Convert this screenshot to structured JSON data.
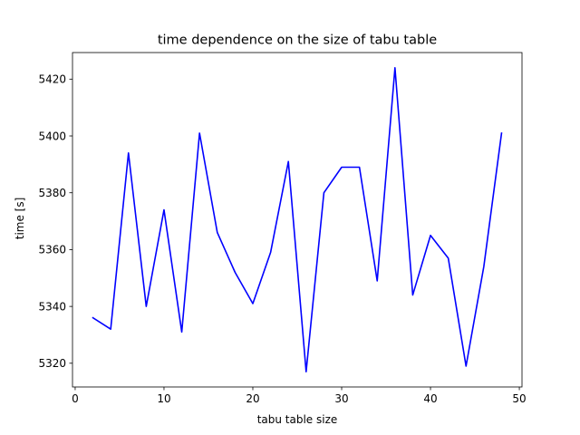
{
  "chart_data": {
    "type": "line",
    "title": "time dependence on the size of tabu table",
    "xlabel": "tabu table size",
    "ylabel": "time [s]",
    "xlim": [
      -0.3,
      50.3
    ],
    "ylim": [
      5311.65,
      5429.35
    ],
    "xticks": [
      0,
      10,
      20,
      30,
      40,
      50
    ],
    "yticks": [
      5320,
      5340,
      5360,
      5380,
      5400,
      5420
    ],
    "grid": false,
    "series": [
      {
        "color": "#0000ff",
        "x": [
          2,
          4,
          6,
          8,
          10,
          12,
          14,
          16,
          18,
          20,
          22,
          24,
          26,
          28,
          30,
          32,
          34,
          36,
          38,
          40,
          42,
          44,
          46,
          48
        ],
        "y": [
          5336,
          5332,
          5394,
          5340,
          5374,
          5331,
          5401,
          5366,
          5352,
          5341,
          5359,
          5391,
          5317,
          5380,
          5389,
          5389,
          5349,
          5424,
          5344,
          5365,
          5357,
          5319,
          5354,
          5401
        ]
      }
    ]
  }
}
